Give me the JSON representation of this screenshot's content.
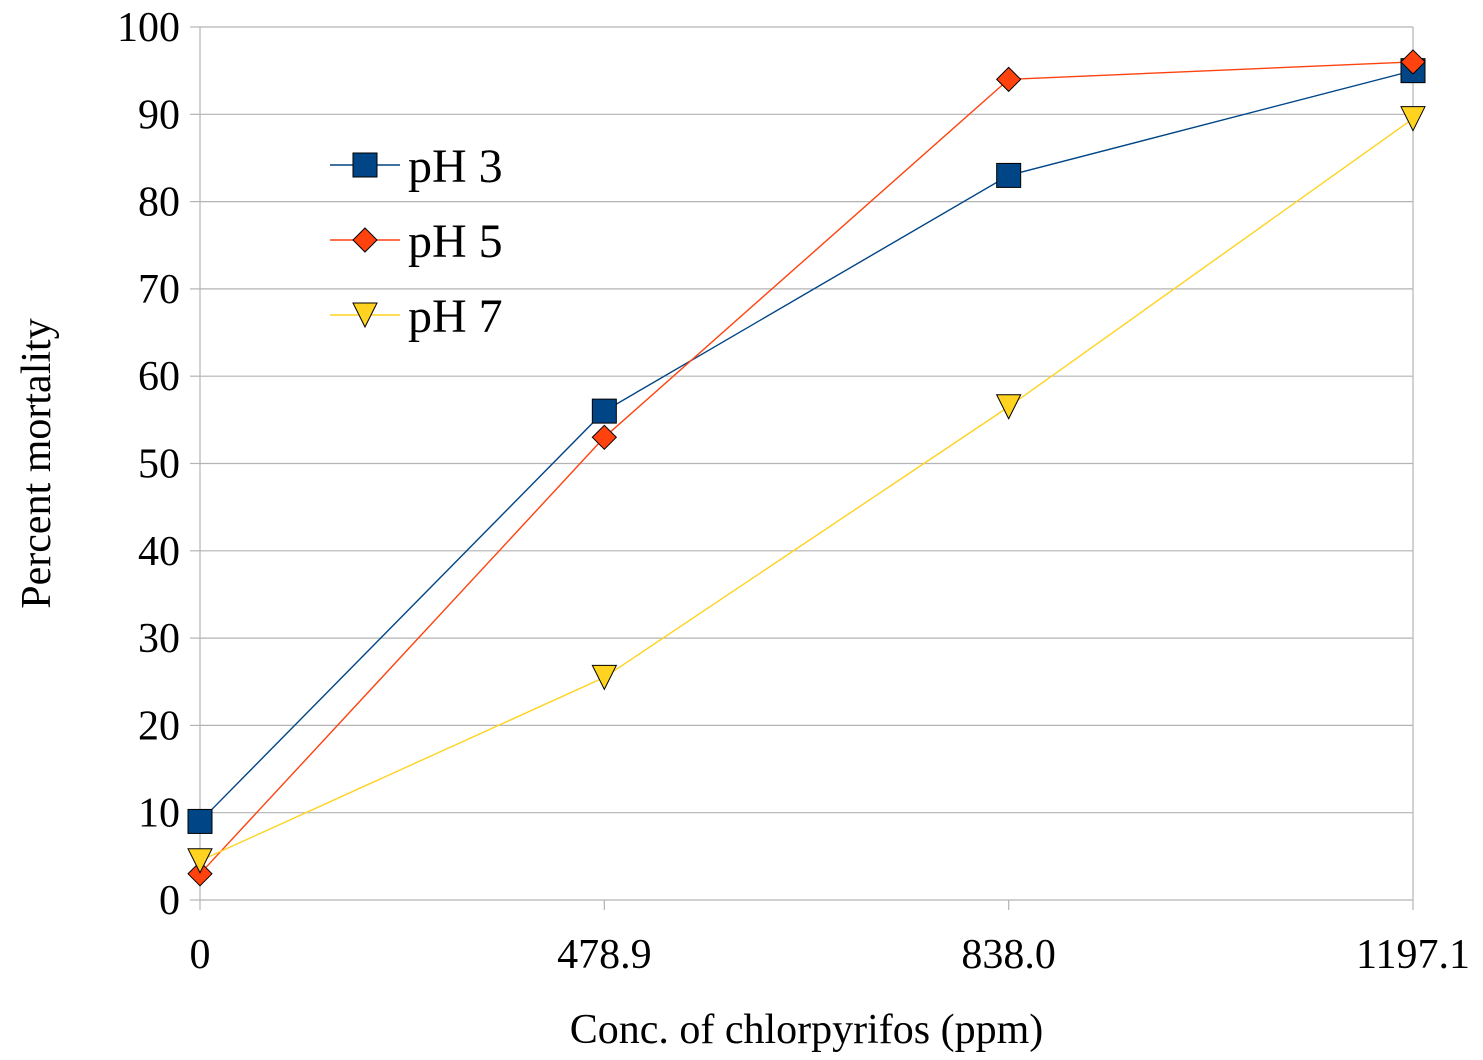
{
  "chart_data": {
    "type": "line",
    "title": "",
    "xlabel": "Conc. of chlorpyrifos (ppm)",
    "ylabel": "Percent mortality",
    "categories": [
      "0",
      "478.9",
      "838.0",
      "1197.1"
    ],
    "ylim": [
      0,
      100
    ],
    "yticks": [
      "0",
      "10",
      "20",
      "30",
      "40",
      "50",
      "60",
      "70",
      "80",
      "90",
      "100"
    ],
    "grid": true,
    "legend_position": "top-left",
    "series": [
      {
        "name": "pH 3",
        "values": [
          9,
          56,
          83,
          95
        ],
        "color": "#004586",
        "marker": "square"
      },
      {
        "name": "pH 5",
        "values": [
          3,
          53,
          94,
          96
        ],
        "color": "#ff420e",
        "marker": "diamond"
      },
      {
        "name": "pH 7",
        "values": [
          4.5,
          25.5,
          56.5,
          89.5
        ],
        "color": "#ffd320",
        "marker": "triangle-down"
      }
    ]
  }
}
